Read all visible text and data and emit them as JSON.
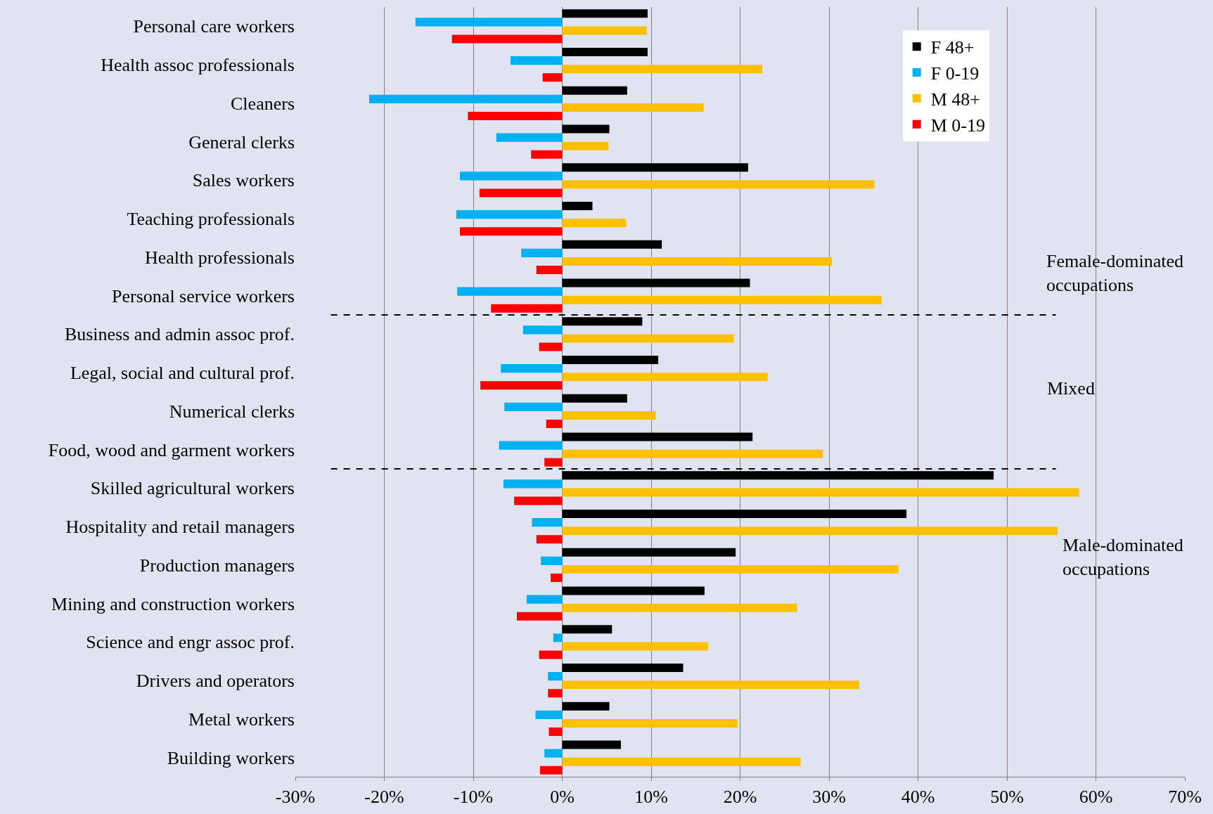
{
  "chart_data": {
    "type": "bar",
    "orientation": "horizontal",
    "categories": [
      "Personal care workers",
      "Health assoc professionals",
      "Cleaners",
      "General clerks",
      "Sales workers",
      "Teaching professionals",
      "Health professionals",
      "Personal service workers",
      "Business and admin assoc prof.",
      "Legal, social and cultural prof.",
      "Numerical clerks",
      "Food, wood and garment workers",
      "Skilled agricultural workers",
      "Hospitality and retail managers",
      "Production managers",
      "Mining and construction workers",
      "Science and engr assoc prof.",
      "Drivers and operators",
      "Metal workers",
      "Building workers"
    ],
    "series": [
      {
        "name": "F 48+",
        "color": "#000000",
        "values": [
          9.6,
          9.6,
          7.3,
          5.3,
          20.9,
          3.4,
          11.2,
          21.1,
          9.0,
          10.8,
          7.3,
          21.4,
          48.5,
          38.7,
          19.5,
          16.0,
          5.6,
          13.6,
          5.3,
          6.6
        ]
      },
      {
        "name": "F 0-19",
        "color": "#00b0f0",
        "values": [
          -16.5,
          -5.8,
          -21.7,
          -7.4,
          -11.5,
          -11.9,
          -4.6,
          -11.8,
          -4.4,
          -6.9,
          -6.5,
          -7.1,
          -6.6,
          -3.4,
          -2.4,
          -4.0,
          -1.0,
          -1.6,
          -3.0,
          -2.0
        ]
      },
      {
        "name": "M 48+",
        "color": "#ffc000",
        "values": [
          9.5,
          22.5,
          15.9,
          5.2,
          35.1,
          7.2,
          30.3,
          35.9,
          19.3,
          23.1,
          10.5,
          29.3,
          58.1,
          55.7,
          37.8,
          26.4,
          16.4,
          33.4,
          19.7,
          26.8
        ]
      },
      {
        "name": "M 0-19",
        "color": "#ff0000",
        "values": [
          -12.4,
          -2.2,
          -10.6,
          -3.5,
          -9.3,
          -11.5,
          -2.9,
          -8.0,
          -2.6,
          -9.2,
          -1.8,
          -2.0,
          -5.4,
          -2.9,
          -1.3,
          -5.1,
          -2.6,
          -1.6,
          -1.5,
          -2.5
        ]
      }
    ],
    "xlim": [
      -30,
      70
    ],
    "xticks": [
      {
        "value": -30,
        "label": "-30%"
      },
      {
        "value": -20,
        "label": "-20%"
      },
      {
        "value": -10,
        "label": "-10%"
      },
      {
        "value": 0,
        "label": "0%"
      },
      {
        "value": 10,
        "label": "10%"
      },
      {
        "value": 20,
        "label": "20%"
      },
      {
        "value": 30,
        "label": "30%"
      },
      {
        "value": 40,
        "label": "40%"
      },
      {
        "value": 50,
        "label": "50%"
      },
      {
        "value": 60,
        "label": "60%"
      },
      {
        "value": 70,
        "label": "70%"
      }
    ],
    "grid": "x",
    "legend": "top right",
    "annotations": [
      "Female-dominated occupations",
      "Mixed",
      "Male-dominated occupations"
    ]
  }
}
